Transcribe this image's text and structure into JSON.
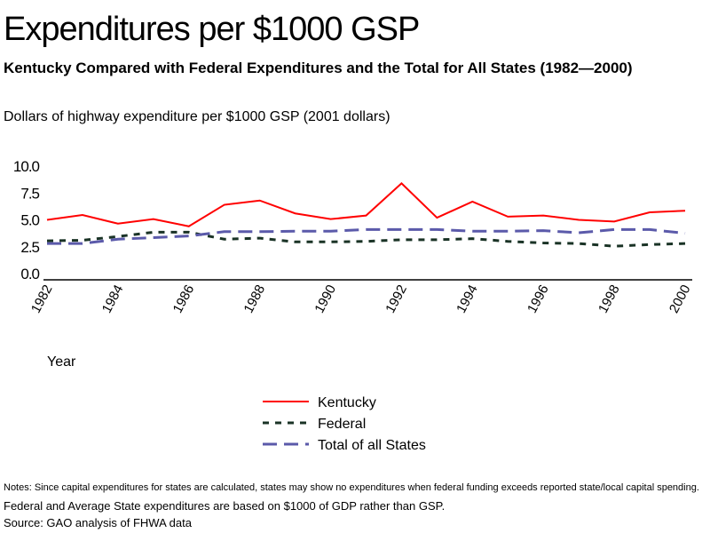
{
  "title": "Expenditures per $1000 GSP",
  "subtitle": "Kentucky Compared with Federal Expenditures and the Total for All States (1982—2000)",
  "notes": [
    "Notes: Since capital expenditures for states are calculated, states may show no expenditures when federal funding exceeds reported state/local capital spending.",
    "Federal and Average State expenditures are based on $1000 of GDP rather than GSP.",
    "Source: GAO analysis of FHWA data"
  ],
  "chart_data": {
    "type": "line",
    "ylabel": "Dollars of highway expenditure per $1000 GSP (2001 dollars)",
    "xlabel": "Year",
    "ylim": [
      0,
      10
    ],
    "yticks": [
      "0.0",
      "2.5",
      "5.0",
      "7.5",
      "10.0"
    ],
    "xticks": [
      "1982",
      "1984",
      "1986",
      "1988",
      "1990",
      "1992",
      "1994",
      "1996",
      "1998",
      "2000"
    ],
    "grid": false,
    "legend_position": "bottom",
    "x": [
      1982,
      1983,
      1984,
      1985,
      1986,
      1987,
      1988,
      1989,
      1990,
      1991,
      1992,
      1993,
      1994,
      1995,
      1996,
      1997,
      1998,
      1999,
      2000
    ],
    "series": [
      {
        "name": "Kentucky",
        "color": "#ff0000",
        "style": "solid",
        "values": [
          5.0,
          5.45,
          4.65,
          5.07,
          4.4,
          6.4,
          6.8,
          5.6,
          5.07,
          5.4,
          8.4,
          5.2,
          6.7,
          5.3,
          5.4,
          5.0,
          4.85,
          5.7,
          5.85
        ]
      },
      {
        "name": "Federal",
        "color": "#1a3326",
        "style": "dotted",
        "values": [
          3.05,
          3.1,
          3.45,
          3.85,
          3.85,
          3.2,
          3.3,
          2.95,
          2.95,
          3.0,
          3.15,
          3.15,
          3.25,
          3.0,
          2.85,
          2.8,
          2.55,
          2.7,
          2.8
        ]
      },
      {
        "name": "Total of all States",
        "color": "#5b5aaa",
        "style": "dashed",
        "values": [
          2.8,
          2.8,
          3.2,
          3.35,
          3.5,
          3.9,
          3.9,
          3.95,
          3.95,
          4.1,
          4.1,
          4.1,
          3.95,
          3.95,
          4.0,
          3.8,
          4.1,
          4.1,
          3.75
        ]
      }
    ]
  }
}
